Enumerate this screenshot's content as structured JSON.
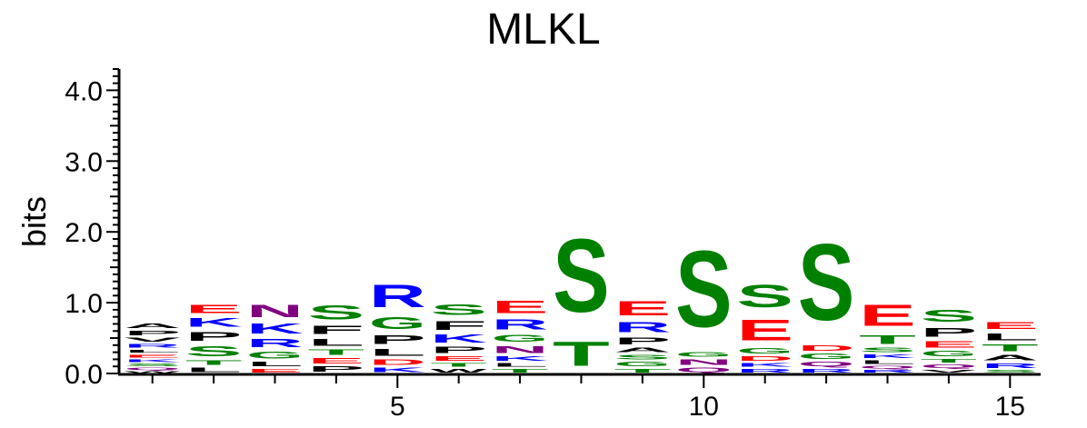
{
  "chart_data": {
    "type": "sequence-logo",
    "title": "MLKL",
    "ylabel": "bits",
    "ylim": [
      0,
      4.3
    ],
    "y_ticks": [
      "0.0",
      "1.0",
      "2.0",
      "3.0",
      "4.0"
    ],
    "y_tick_values": [
      0,
      1,
      2,
      3,
      4
    ],
    "x_ticks": [
      "5",
      "10",
      "15"
    ],
    "x_tick_values": [
      5,
      10,
      15
    ],
    "xlim": [
      0.5,
      15.5
    ],
    "colors": {
      "acidic": "#ff0000",
      "basic": "#0000ff",
      "polar": "#008000",
      "amide": "#800080",
      "hydrophobic": "#000000"
    },
    "positions": [
      {
        "pos": 1,
        "stack": [
          {
            "letter": "W",
            "bits": 0.04,
            "color": "#000000"
          },
          {
            "letter": "Q",
            "bits": 0.05,
            "color": "#800080"
          },
          {
            "letter": "S",
            "bits": 0.06,
            "color": "#008000"
          },
          {
            "letter": "K",
            "bits": 0.06,
            "color": "#0000ff"
          },
          {
            "letter": "E",
            "bits": 0.07,
            "color": "#ff0000"
          },
          {
            "letter": "L",
            "bits": 0.07,
            "color": "#000000"
          },
          {
            "letter": "R",
            "bits": 0.08,
            "color": "#0000ff"
          },
          {
            "letter": "V",
            "bits": 0.09,
            "color": "#000000"
          },
          {
            "letter": "P",
            "bits": 0.1,
            "color": "#000000"
          },
          {
            "letter": "A",
            "bits": 0.1,
            "color": "#000000"
          }
        ]
      },
      {
        "pos": 2,
        "stack": [
          {
            "letter": "L",
            "bits": 0.1,
            "color": "#000000"
          },
          {
            "letter": "T",
            "bits": 0.1,
            "color": "#008000"
          },
          {
            "letter": "S",
            "bits": 0.22,
            "color": "#008000"
          },
          {
            "letter": "P",
            "bits": 0.2,
            "color": "#000000"
          },
          {
            "letter": "K",
            "bits": 0.2,
            "color": "#0000ff"
          },
          {
            "letter": "E",
            "bits": 0.18,
            "color": "#ff0000"
          }
        ]
      },
      {
        "pos": 3,
        "stack": [
          {
            "letter": "E",
            "bits": 0.08,
            "color": "#ff0000"
          },
          {
            "letter": "L",
            "bits": 0.1,
            "color": "#000000"
          },
          {
            "letter": "G",
            "bits": 0.16,
            "color": "#008000"
          },
          {
            "letter": "R",
            "bits": 0.18,
            "color": "#0000ff"
          },
          {
            "letter": "K",
            "bits": 0.22,
            "color": "#0000ff"
          },
          {
            "letter": "N",
            "bits": 0.28,
            "color": "#800080"
          }
        ]
      },
      {
        "pos": 4,
        "stack": [
          {
            "letter": "P",
            "bits": 0.12,
            "color": "#000000"
          },
          {
            "letter": "E",
            "bits": 0.12,
            "color": "#ff0000"
          },
          {
            "letter": "T",
            "bits": 0.12,
            "color": "#008000"
          },
          {
            "letter": "L",
            "bits": 0.16,
            "color": "#000000"
          },
          {
            "letter": "F",
            "bits": 0.18,
            "color": "#000000"
          },
          {
            "letter": "S",
            "bits": 0.32,
            "color": "#008000"
          }
        ]
      },
      {
        "pos": 5,
        "stack": [
          {
            "letter": "K",
            "bits": 0.1,
            "color": "#0000ff"
          },
          {
            "letter": "D",
            "bits": 0.12,
            "color": "#ff0000"
          },
          {
            "letter": "L",
            "bits": 0.16,
            "color": "#000000"
          },
          {
            "letter": "P",
            "bits": 0.2,
            "color": "#000000"
          },
          {
            "letter": "G",
            "bits": 0.26,
            "color": "#008000"
          },
          {
            "letter": "R",
            "bits": 0.5,
            "color": "#0000ff"
          }
        ]
      },
      {
        "pos": 6,
        "stack": [
          {
            "letter": "W",
            "bits": 0.08,
            "color": "#000000"
          },
          {
            "letter": "T",
            "bits": 0.08,
            "color": "#008000"
          },
          {
            "letter": "E",
            "bits": 0.1,
            "color": "#ff0000"
          },
          {
            "letter": "P",
            "bits": 0.14,
            "color": "#000000"
          },
          {
            "letter": "K",
            "bits": 0.18,
            "color": "#0000ff"
          },
          {
            "letter": "F",
            "bits": 0.2,
            "color": "#000000"
          },
          {
            "letter": "S",
            "bits": 0.24,
            "color": "#008000"
          }
        ]
      },
      {
        "pos": 7,
        "stack": [
          {
            "letter": "T",
            "bits": 0.08,
            "color": "#008000"
          },
          {
            "letter": "L",
            "bits": 0.08,
            "color": "#000000"
          },
          {
            "letter": "K",
            "bits": 0.1,
            "color": "#0000ff"
          },
          {
            "letter": "N",
            "bits": 0.16,
            "color": "#800080"
          },
          {
            "letter": "G",
            "bits": 0.16,
            "color": "#008000"
          },
          {
            "letter": "R",
            "bits": 0.22,
            "color": "#0000ff"
          },
          {
            "letter": "E",
            "bits": 0.28,
            "color": "#ff0000"
          }
        ]
      },
      {
        "pos": 8,
        "stack": [
          {
            "letter": "T",
            "bits": 0.55,
            "color": "#008000"
          },
          {
            "letter": "S",
            "bits": 1.65,
            "color": "#008000"
          }
        ]
      },
      {
        "pos": 9,
        "stack": [
          {
            "letter": "T",
            "bits": 0.08,
            "color": "#008000"
          },
          {
            "letter": "G",
            "bits": 0.1,
            "color": "#008000"
          },
          {
            "letter": "S",
            "bits": 0.1,
            "color": "#008000"
          },
          {
            "letter": "A",
            "bits": 0.1,
            "color": "#000000"
          },
          {
            "letter": "P",
            "bits": 0.16,
            "color": "#000000"
          },
          {
            "letter": "R",
            "bits": 0.22,
            "color": "#0000ff"
          },
          {
            "letter": "E",
            "bits": 0.32,
            "color": "#ff0000"
          }
        ]
      },
      {
        "pos": 10,
        "stack": [
          {
            "letter": "Q",
            "bits": 0.1,
            "color": "#800080"
          },
          {
            "letter": "N",
            "bits": 0.12,
            "color": "#800080"
          },
          {
            "letter": "G",
            "bits": 0.1,
            "color": "#008000"
          },
          {
            "letter": "S",
            "bits": 1.72,
            "color": "#008000"
          }
        ]
      },
      {
        "pos": 11,
        "stack": [
          {
            "letter": "R",
            "bits": 0.08,
            "color": "#0000ff"
          },
          {
            "letter": "K",
            "bits": 0.08,
            "color": "#0000ff"
          },
          {
            "letter": "D",
            "bits": 0.1,
            "color": "#ff0000"
          },
          {
            "letter": "G",
            "bits": 0.12,
            "color": "#008000"
          },
          {
            "letter": "E",
            "bits": 0.46,
            "color": "#ff0000"
          },
          {
            "letter": "S",
            "bits": 0.5,
            "color": "#008000"
          }
        ]
      },
      {
        "pos": 12,
        "stack": [
          {
            "letter": "R",
            "bits": 0.08,
            "color": "#0000ff"
          },
          {
            "letter": "Q",
            "bits": 0.1,
            "color": "#800080"
          },
          {
            "letter": "G",
            "bits": 0.12,
            "color": "#008000"
          },
          {
            "letter": "D",
            "bits": 0.12,
            "color": "#ff0000"
          },
          {
            "letter": "S",
            "bits": 1.72,
            "color": "#008000"
          }
        ]
      },
      {
        "pos": 13,
        "stack": [
          {
            "letter": "R",
            "bits": 0.06,
            "color": "#0000ff"
          },
          {
            "letter": "Q",
            "bits": 0.06,
            "color": "#800080"
          },
          {
            "letter": "L",
            "bits": 0.08,
            "color": "#000000"
          },
          {
            "letter": "K",
            "bits": 0.08,
            "color": "#0000ff"
          },
          {
            "letter": "S",
            "bits": 0.1,
            "color": "#008000"
          },
          {
            "letter": "T",
            "bits": 0.2,
            "color": "#008000"
          },
          {
            "letter": "E",
            "bits": 0.48,
            "color": "#ff0000"
          }
        ]
      },
      {
        "pos": 14,
        "stack": [
          {
            "letter": "V",
            "bits": 0.06,
            "color": "#000000"
          },
          {
            "letter": "Q",
            "bits": 0.08,
            "color": "#800080"
          },
          {
            "letter": "T",
            "bits": 0.08,
            "color": "#008000"
          },
          {
            "letter": "G",
            "bits": 0.12,
            "color": "#008000"
          },
          {
            "letter": "E",
            "bits": 0.14,
            "color": "#ff0000"
          },
          {
            "letter": "P",
            "bits": 0.2,
            "color": "#000000"
          },
          {
            "letter": "S",
            "bits": 0.26,
            "color": "#008000"
          }
        ]
      },
      {
        "pos": 15,
        "stack": [
          {
            "letter": "S",
            "bits": 0.06,
            "color": "#008000"
          },
          {
            "letter": "R",
            "bits": 0.1,
            "color": "#0000ff"
          },
          {
            "letter": "A",
            "bits": 0.12,
            "color": "#000000"
          },
          {
            "letter": "T",
            "bits": 0.16,
            "color": "#008000"
          },
          {
            "letter": "L",
            "bits": 0.16,
            "color": "#000000"
          },
          {
            "letter": "E",
            "bits": 0.16,
            "color": "#ff0000"
          }
        ]
      }
    ]
  }
}
